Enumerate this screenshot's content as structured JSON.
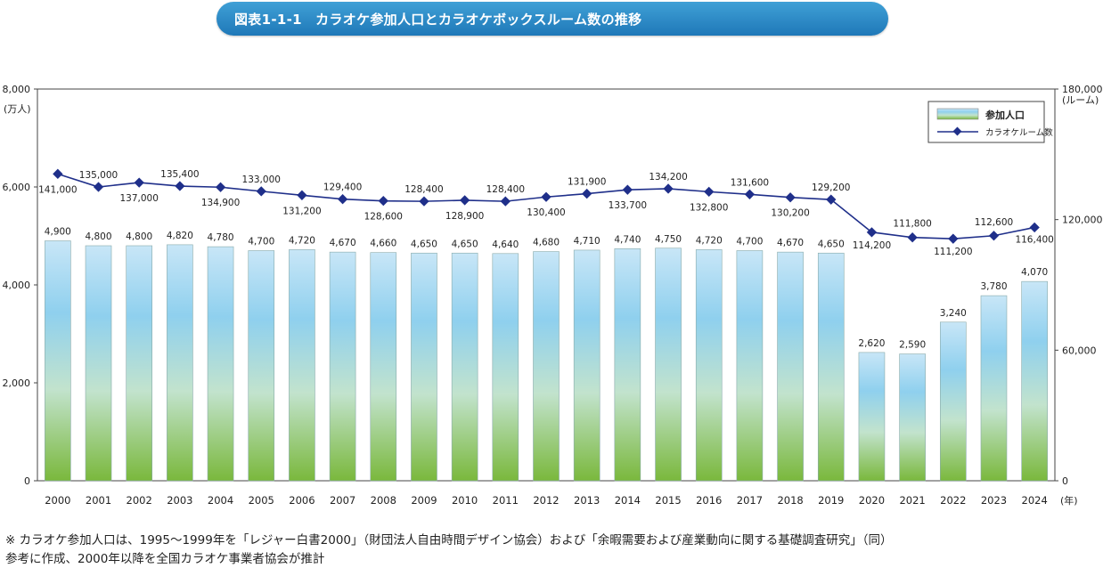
{
  "header": {
    "title": "図表1-1-1　カラオケ参加人口とカラオケボックスルーム数の推移"
  },
  "chart_data": {
    "type": "bar",
    "categories": [
      "2000",
      "2001",
      "2002",
      "2003",
      "2004",
      "2005",
      "2006",
      "2007",
      "2008",
      "2009",
      "2010",
      "2011",
      "2012",
      "2013",
      "2014",
      "2015",
      "2016",
      "2017",
      "2018",
      "2019",
      "2020",
      "2021",
      "2022",
      "2023",
      "2024"
    ],
    "series": [
      {
        "name": "参加人口",
        "type": "bar",
        "axis": "left",
        "values": [
          4900,
          4800,
          4800,
          4820,
          4780,
          4700,
          4720,
          4670,
          4660,
          4650,
          4650,
          4640,
          4680,
          4710,
          4740,
          4750,
          4720,
          4700,
          4670,
          4650,
          2620,
          2590,
          3240,
          3780,
          4070
        ],
        "labels": [
          "4,900",
          "4,800",
          "4,800",
          "4,820",
          "4,780",
          "4,700",
          "4,720",
          "4,670",
          "4,660",
          "4,650",
          "4,650",
          "4,640",
          "4,680",
          "4,710",
          "4,740",
          "4,750",
          "4,720",
          "4,700",
          "4,670",
          "4,650",
          "2,620",
          "2,590",
          "3,240",
          "3,780",
          "4,070"
        ]
      },
      {
        "name": "カラオケルーム数",
        "type": "line",
        "axis": "right",
        "values": [
          141000,
          135000,
          137000,
          135400,
          134900,
          133000,
          131200,
          129400,
          128600,
          128400,
          128900,
          128400,
          130400,
          131900,
          133700,
          134200,
          132800,
          131600,
          130200,
          129200,
          114200,
          111800,
          111200,
          112600,
          116400
        ],
        "labels": [
          "141,000",
          "135,000",
          "137,000",
          "135,400",
          "134,900",
          "133,000",
          "131,200",
          "129,400",
          "128,600",
          "128,400",
          "128,900",
          "128,400",
          "130,400",
          "131,900",
          "133,700",
          "134,200",
          "132,800",
          "131,600",
          "130,200",
          "129,200",
          "114,200",
          "111,800",
          "111,200",
          "112,600",
          "116,400"
        ]
      }
    ],
    "y_left": {
      "ylim": [
        0,
        8000
      ],
      "unit": "(万人)",
      "ticks": [
        "0",
        "2,000",
        "4,000",
        "6,000",
        "8,000"
      ]
    },
    "y_right": {
      "ylim": [
        0,
        180000
      ],
      "unit": "(ルーム)",
      "ticks": [
        "0",
        "60,000",
        "120,000",
        "180,000"
      ]
    },
    "x_unit": "(年)",
    "legend_position": "top-right",
    "colors": {
      "bar_top": "#c8e6f7",
      "bar_mid": "#8fd0ee",
      "bar_bottom": "#7ab83c",
      "line": "#1f2f8a"
    }
  },
  "footnote": {
    "line1": "※ カラオケ参加人口は、1995～1999年を「レジャー白書2000」（財団法人自由時間デザイン協会）および「余暇需要および産業動向に関する基礎調査研究」（同）",
    "line2": "参考に作成、2000年以降を全国カラオケ事業者協会が推計"
  }
}
